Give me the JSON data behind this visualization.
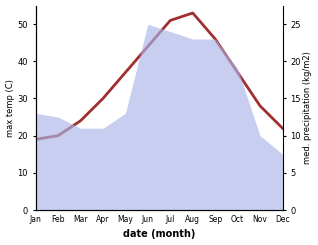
{
  "months": [
    "Jan",
    "Feb",
    "Mar",
    "Apr",
    "May",
    "Jun",
    "Jul",
    "Aug",
    "Sep",
    "Oct",
    "Nov",
    "Dec"
  ],
  "temp_max": [
    19,
    20,
    24,
    30,
    37,
    44,
    51,
    53,
    46,
    37,
    28,
    22
  ],
  "precipitation": [
    13,
    12.5,
    11,
    11,
    13,
    25,
    24,
    23,
    23,
    19,
    10,
    7.5
  ],
  "temp_ylim": [
    0,
    55
  ],
  "precip_ylim": [
    0,
    27.5
  ],
  "temp_color": "#a03030",
  "precip_color": "#aab4e8",
  "precip_alpha": 0.65,
  "ylabel_left": "max temp (C)",
  "ylabel_right": "med. precipitation (kg/m2)",
  "xlabel": "date (month)",
  "temp_linewidth": 2.0,
  "bg_color": "#ffffff",
  "right_yticks": [
    0,
    5,
    10,
    15,
    20,
    25
  ],
  "left_yticks": [
    0,
    10,
    20,
    30,
    40,
    50
  ]
}
